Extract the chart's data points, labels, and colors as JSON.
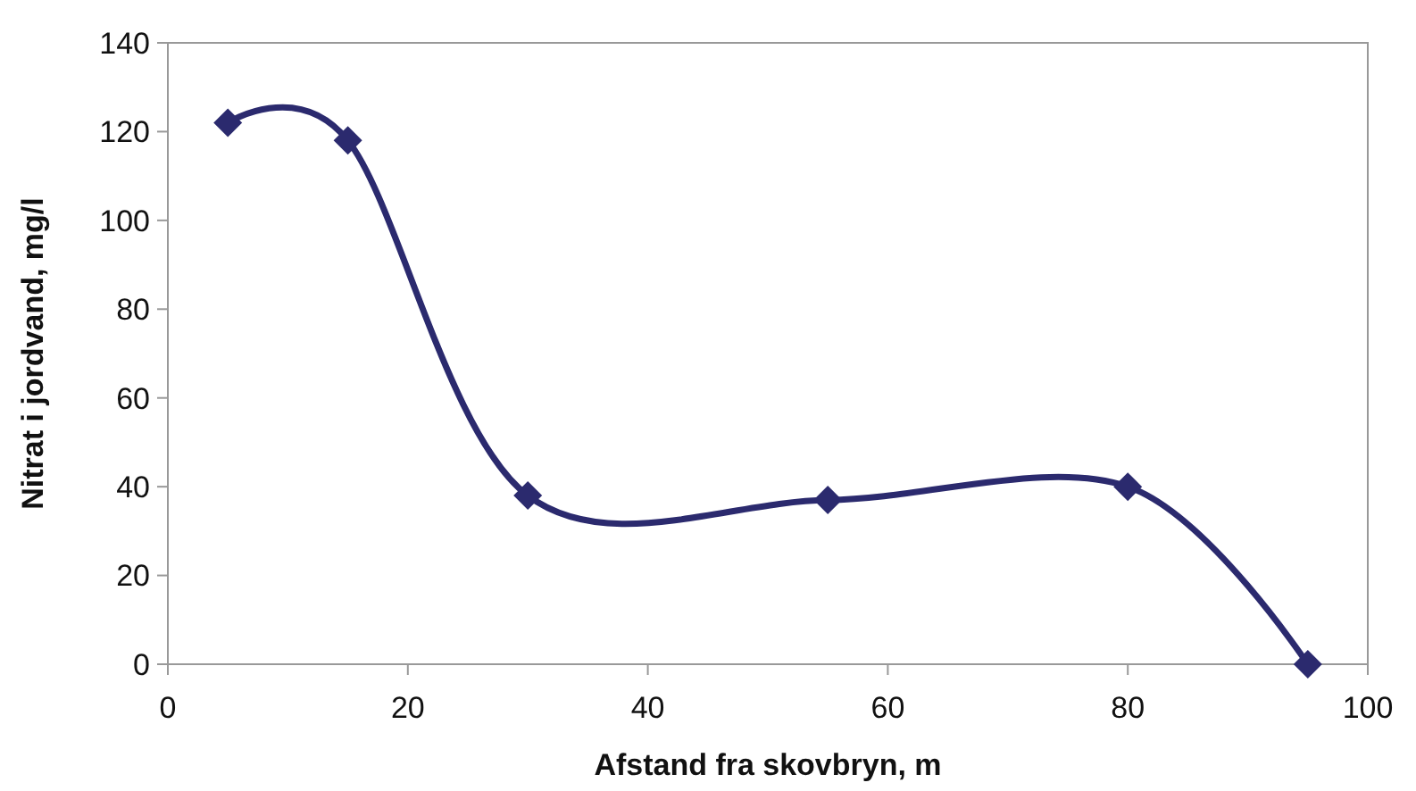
{
  "chart_data": {
    "type": "line",
    "xlabel": "Afstand fra skovbryn, m",
    "ylabel": "Nitrat i jordvand, mg/l",
    "x": [
      5,
      15,
      30,
      55,
      80,
      95
    ],
    "series": [
      {
        "color": "#2b2a6e",
        "values": [
          122,
          118,
          38,
          37,
          40,
          0
        ]
      }
    ],
    "xlim": [
      0,
      100
    ],
    "xticks": [
      0,
      20,
      40,
      60,
      80,
      100
    ],
    "ylim": [
      0,
      140
    ],
    "yticks": [
      0,
      20,
      40,
      60,
      80,
      100,
      120,
      140
    ],
    "grid": false,
    "marker": "diamond",
    "line_style": "solid"
  }
}
